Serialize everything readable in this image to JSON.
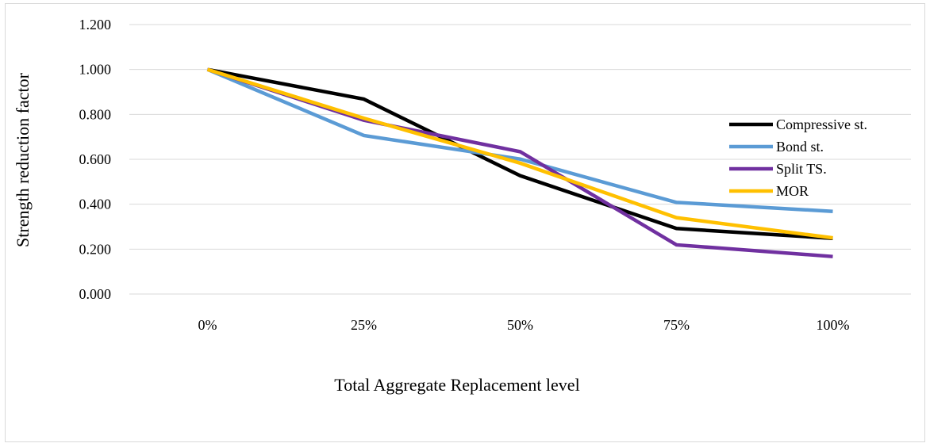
{
  "chart_data": {
    "type": "line",
    "title": "",
    "xlabel": "Total Aggregate Replacement level",
    "ylabel": "Strength reduction factor",
    "categories": [
      "0%",
      "25%",
      "50%",
      "75%",
      "100%"
    ],
    "ylim": [
      0,
      1.2
    ],
    "yticks": [
      "0.000",
      "0.200",
      "0.400",
      "0.600",
      "0.800",
      "1.000",
      "1.200"
    ],
    "grid": true,
    "legend_position": "right",
    "series": [
      {
        "name": "Compressive st.",
        "color": "#000000",
        "values": [
          1.0,
          0.868,
          0.527,
          0.292,
          0.248
        ]
      },
      {
        "name": "Bond st.",
        "color": "#5b9bd5",
        "values": [
          1.0,
          0.706,
          0.601,
          0.408,
          0.368
        ]
      },
      {
        "name": "Split TS.",
        "color": "#7030a0",
        "values": [
          1.0,
          0.774,
          0.634,
          0.219,
          0.167
        ]
      },
      {
        "name": "MOR",
        "color": "#ffc000",
        "values": [
          1.0,
          0.783,
          0.583,
          0.34,
          0.25
        ]
      }
    ]
  }
}
